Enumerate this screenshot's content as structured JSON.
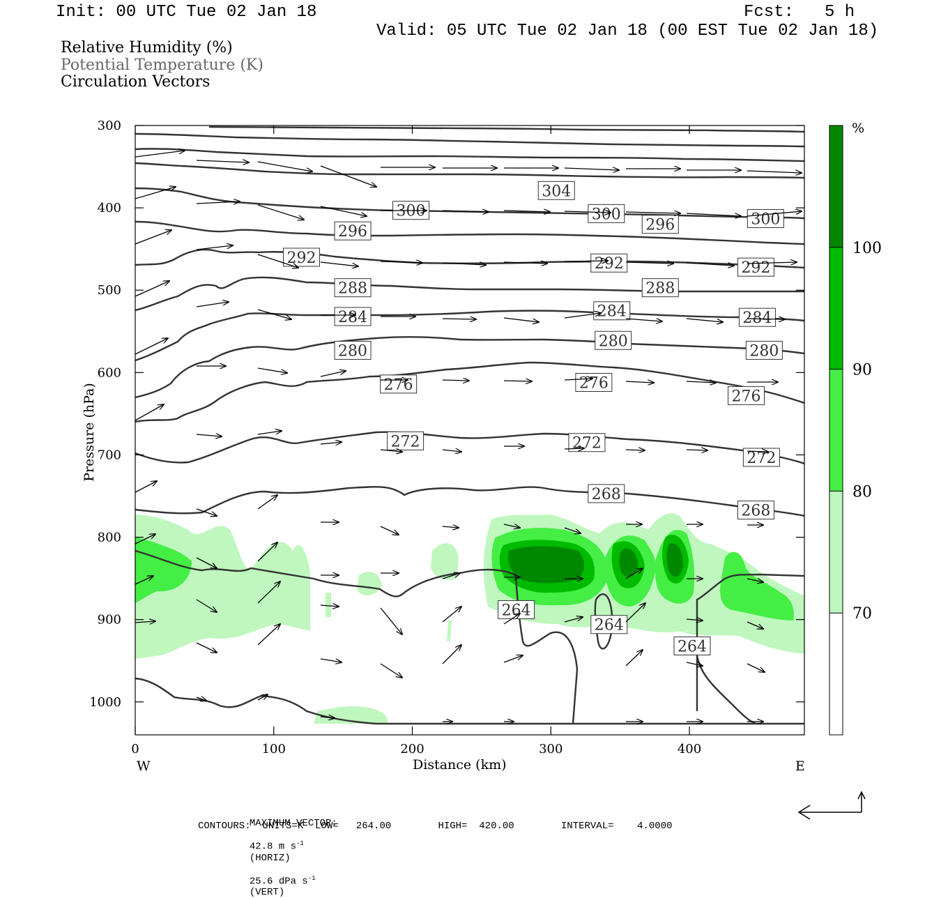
{
  "header": {
    "init": "Init: 00 UTC Tue 02 Jan 18",
    "fcst_label": "Fcst:",
    "fcst_value": "5 h",
    "valid": "Valid: 05 UTC Tue 02 Jan 18 (00 EST Tue 02 Jan 18)"
  },
  "legend": {
    "line1": "Relative Humidity (%)",
    "line2": "Potential Temperature (K)",
    "line3": "Circulation Vectors"
  },
  "footer": {
    "max_vector_label": "MAXIMUM VECTOR:",
    "horiz_value": "42.8 m s",
    "horiz_exp": "-1",
    "horiz_unit": "(HORIZ)",
    "vert_value": "25.6 dPa s",
    "vert_exp": "-1",
    "vert_unit": "(VERT)",
    "contours": "CONTOURS:  UNITS=K  LOW=   264.00        HIGH=  420.00        INTERVAL=    4.0000"
  },
  "colors": {
    "rh_70_80": "#bff7bf",
    "rh_80_90": "#44ee44",
    "rh_90_100": "#00bb00",
    "rh_100": "#008800",
    "contour": "#333333",
    "vector": "#000000"
  },
  "chart_data": {
    "type": "cross-section",
    "xlabel": "Distance (km)",
    "ylabel": "Pressure (hPa)",
    "x_end_labels": [
      "W",
      "E"
    ],
    "xlim": [
      0,
      483
    ],
    "ylim": [
      1040,
      300
    ],
    "x_ticks": [
      0,
      100,
      200,
      300,
      400
    ],
    "y_ticks": [
      300,
      400,
      500,
      600,
      700,
      800,
      900,
      1000
    ],
    "colorbar": {
      "unit": "%",
      "levels": [
        70,
        80,
        90,
        100
      ],
      "colors": [
        "#ffffff",
        "#bff7bf",
        "#44ee44",
        "#00bb00",
        "#008800"
      ]
    },
    "theta_contours": [
      {
        "value": 264,
        "labels": [
          [
            275,
            888
          ],
          [
            342,
            906
          ],
          [
            402,
            932
          ]
        ]
      },
      {
        "value": 268,
        "labels": [
          [
            340,
            747
          ],
          [
            448,
            767
          ]
        ]
      },
      {
        "value": 272,
        "labels": [
          [
            195,
            683
          ],
          [
            326,
            685
          ],
          [
            452,
            703
          ]
        ]
      },
      {
        "value": 276,
        "labels": [
          [
            190,
            614
          ],
          [
            331,
            612
          ],
          [
            441,
            628
          ]
        ]
      },
      {
        "value": 280,
        "labels": [
          [
            157,
            573
          ],
          [
            345,
            561
          ],
          [
            454,
            573
          ]
        ]
      },
      {
        "value": 284,
        "labels": [
          [
            157,
            532
          ],
          [
            344,
            525
          ],
          [
            449,
            533
          ]
        ]
      },
      {
        "value": 288,
        "labels": [
          [
            157,
            497
          ],
          [
            379,
            497
          ]
        ]
      },
      {
        "value": 292,
        "labels": [
          [
            120,
            460
          ],
          [
            342,
            467
          ],
          [
            448,
            472
          ]
        ]
      },
      {
        "value": 296,
        "labels": [
          [
            157,
            428
          ],
          [
            379,
            420
          ]
        ]
      },
      {
        "value": 300,
        "labels": [
          [
            199,
            403
          ],
          [
            340,
            407
          ],
          [
            455,
            413
          ]
        ]
      },
      {
        "value": 304,
        "labels": [
          [
            304,
            379
          ]
        ]
      }
    ],
    "rh_regions": [
      {
        "min": 70,
        "desc": "low-level moist layer 780-940 hPa across most of section"
      },
      {
        "min": 80,
        "desc": "cores near 0-40 km, 260-340 km, 345-400 km, 430-475 km"
      },
      {
        "min": 90,
        "desc": "cores near 270-330 km, 350-365 km, 380-395 km"
      }
    ]
  }
}
